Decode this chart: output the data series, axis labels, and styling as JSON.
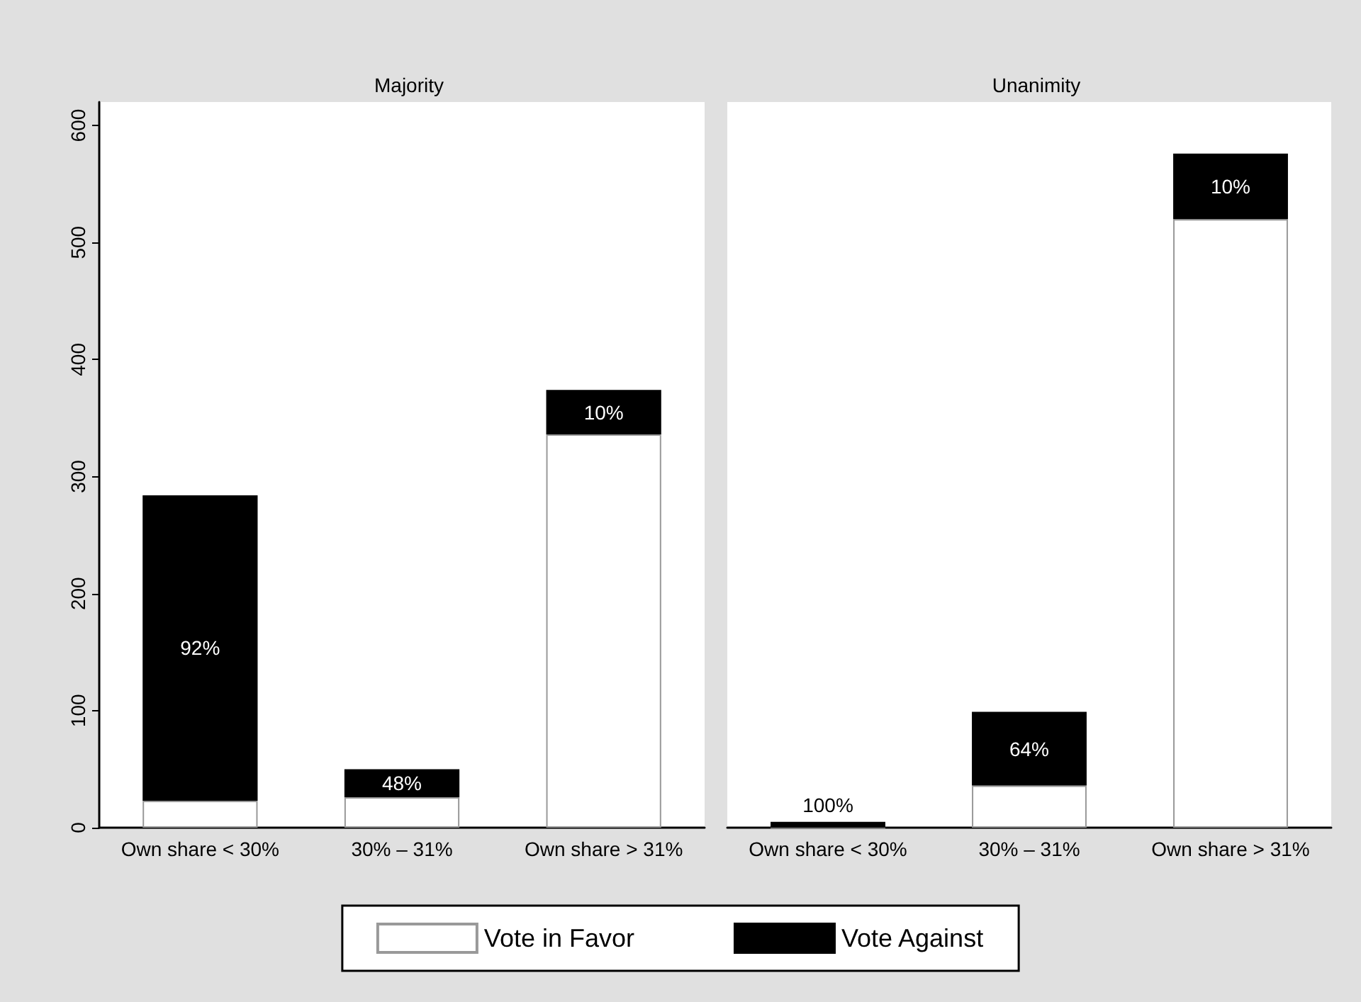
{
  "chart_data": [
    {
      "type": "bar",
      "title": "Majority",
      "categories": [
        "Own share < 30%",
        "30% – 31%",
        "Own share > 31%"
      ],
      "stacked": true,
      "series": [
        {
          "name": "Vote in Favor",
          "color": "#ffffff",
          "values": [
            23,
            26,
            336
          ]
        },
        {
          "name": "Vote Against",
          "color": "#000000",
          "values": [
            261,
            24,
            38
          ]
        }
      ],
      "annotations": [
        "92%",
        "48%",
        "10%"
      ],
      "ylim": [
        0,
        620
      ],
      "yticks": [
        0,
        100,
        200,
        300,
        400,
        500,
        600
      ],
      "grid": false,
      "legend": "bottom"
    },
    {
      "type": "bar",
      "title": "Unanimity",
      "categories": [
        "Own share < 30%",
        "30% – 31%",
        "Own share > 31%"
      ],
      "stacked": true,
      "series": [
        {
          "color": "#ffffff",
          "values": [
            0,
            36,
            520
          ]
        },
        {
          "color": "#000000",
          "values": [
            5,
            63,
            56
          ]
        }
      ],
      "annotations": [
        "100%",
        "64%",
        "10%"
      ],
      "ylim": [
        0,
        620
      ],
      "yticks": [
        0,
        100,
        200,
        300,
        400,
        500,
        600
      ],
      "grid": false,
      "tick_labels": "x"
    }
  ]
}
